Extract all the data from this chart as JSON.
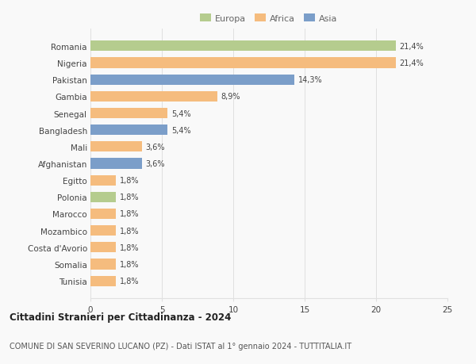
{
  "categories": [
    "Romania",
    "Nigeria",
    "Pakistan",
    "Gambia",
    "Senegal",
    "Bangladesh",
    "Mali",
    "Afghanistan",
    "Egitto",
    "Polonia",
    "Marocco",
    "Mozambico",
    "Costa d'Avorio",
    "Somalia",
    "Tunisia"
  ],
  "values": [
    21.4,
    21.4,
    14.3,
    8.9,
    5.4,
    5.4,
    3.6,
    3.6,
    1.8,
    1.8,
    1.8,
    1.8,
    1.8,
    1.8,
    1.8
  ],
  "labels": [
    "21,4%",
    "21,4%",
    "14,3%",
    "8,9%",
    "5,4%",
    "5,4%",
    "3,6%",
    "3,6%",
    "1,8%",
    "1,8%",
    "1,8%",
    "1,8%",
    "1,8%",
    "1,8%",
    "1,8%"
  ],
  "colors": [
    "#b5cc8e",
    "#f5bc7e",
    "#7b9ec9",
    "#f5bc7e",
    "#f5bc7e",
    "#7b9ec9",
    "#f5bc7e",
    "#7b9ec9",
    "#f5bc7e",
    "#b5cc8e",
    "#f5bc7e",
    "#f5bc7e",
    "#f5bc7e",
    "#f5bc7e",
    "#f5bc7e"
  ],
  "legend_labels": [
    "Europa",
    "Africa",
    "Asia"
  ],
  "legend_colors": [
    "#b5cc8e",
    "#f5bc7e",
    "#7b9ec9"
  ],
  "xlim": [
    0,
    25
  ],
  "xticks": [
    0,
    5,
    10,
    15,
    20,
    25
  ],
  "title1": "Cittadini Stranieri per Cittadinanza - 2024",
  "title2": "COMUNE DI SAN SEVERINO LUCANO (PZ) - Dati ISTAT al 1° gennaio 2024 - TUTTITALIA.IT",
  "background_color": "#f9f9f9",
  "grid_color": "#e0e0e0"
}
